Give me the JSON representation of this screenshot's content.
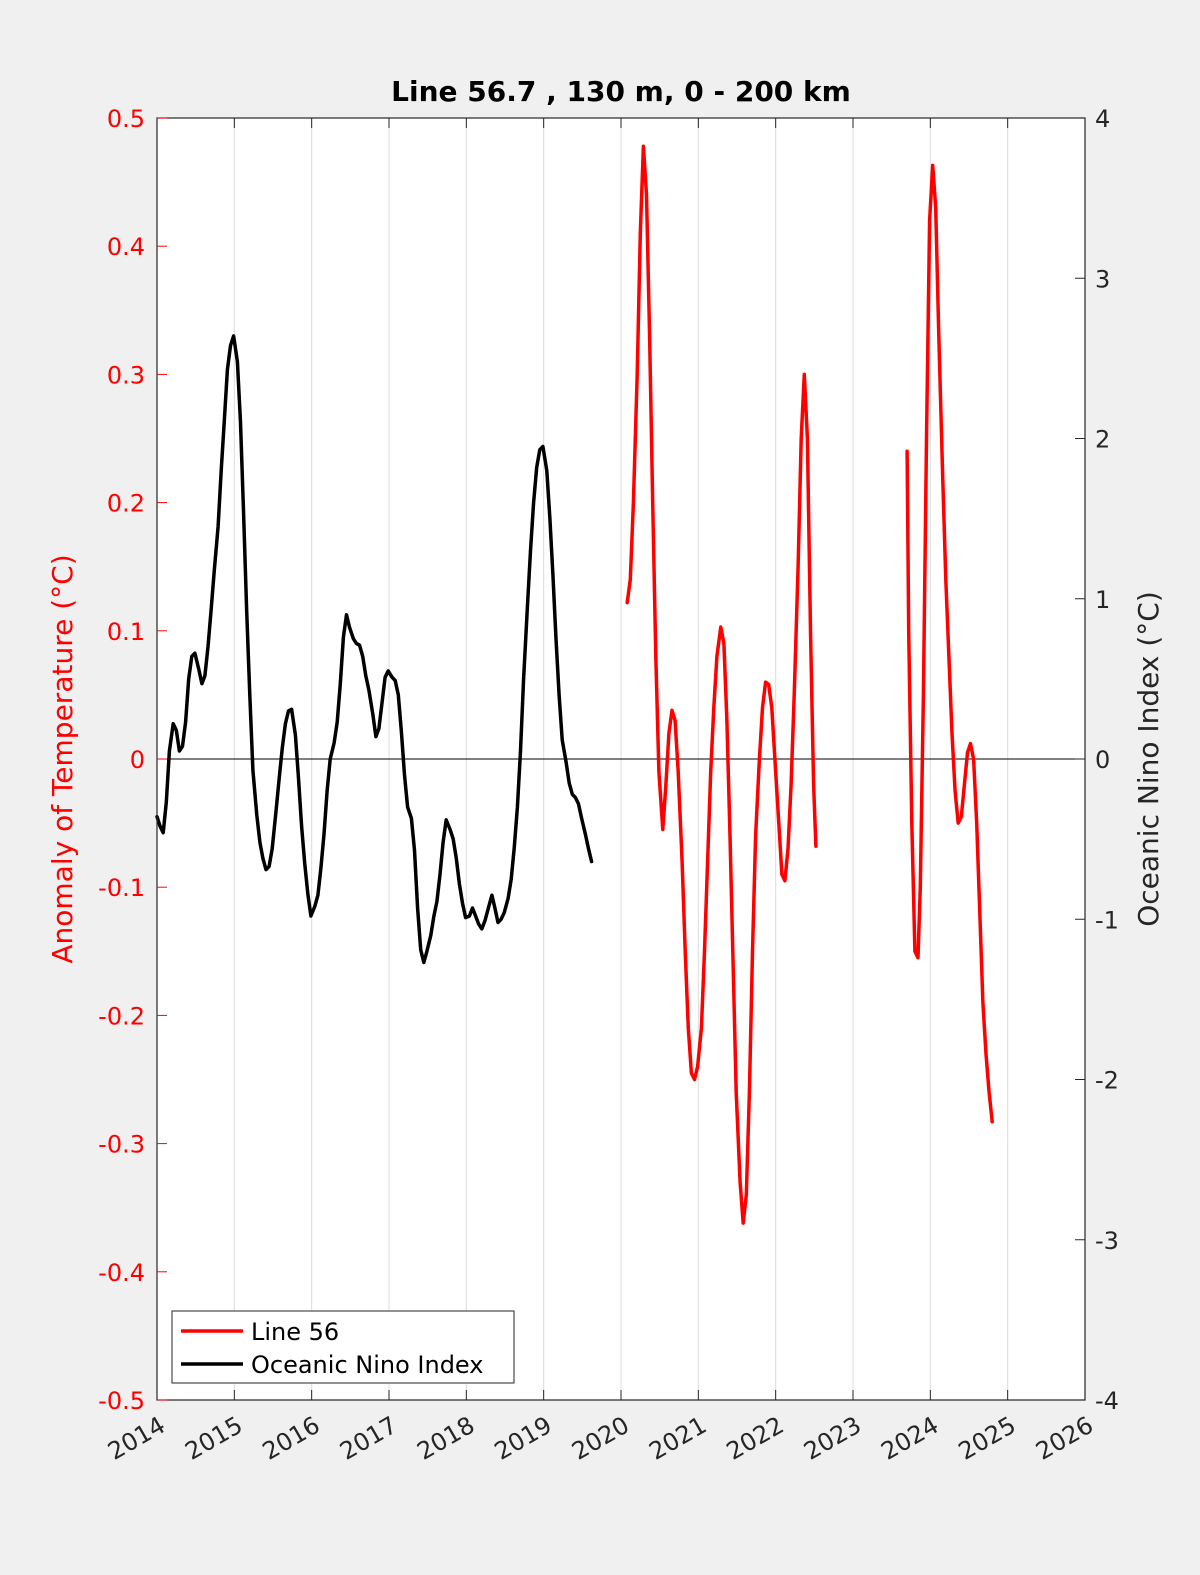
{
  "chart_data": {
    "type": "line",
    "title": "Line 56.7 , 130 m, 0 - 200 km",
    "xlabel": "",
    "ylabel_left": "Anomaly of Temperature (°C)",
    "ylabel_right": "Oceanic Nino Index (°C)",
    "xlim": [
      2014,
      2026
    ],
    "ylim_left": [
      -0.5,
      0.5
    ],
    "ylim_right": [
      -4,
      4
    ],
    "x_ticks": [
      "2014",
      "2015",
      "2016",
      "2017",
      "2018",
      "2019",
      "2020",
      "2021",
      "2022",
      "2023",
      "2024",
      "2025",
      "2026"
    ],
    "y_ticks_left": [
      "0.5",
      "0.4",
      "0.3",
      "0.2",
      "0.1",
      "0",
      "-0.1",
      "-0.2",
      "-0.3",
      "-0.4",
      "-0.5"
    ],
    "y_ticks_right": [
      "4",
      "3",
      "2",
      "1",
      "0",
      "-1",
      "-2",
      "-3",
      "-4"
    ],
    "grid": "vertical",
    "legend": "bottom-left",
    "colors": {
      "left_axis": "#ff0000",
      "line56": "#ff0000",
      "oni": "#000000",
      "background": "#f0f0f0",
      "plot_bg": "#ffffff",
      "grid": "#dcdcdc"
    },
    "series": [
      {
        "name": "Line 56",
        "axis": "left",
        "segments": [
          [
            [
              2020.08,
              0.122
            ],
            [
              2020.12,
              0.14
            ],
            [
              2020.16,
              0.2
            ],
            [
              2020.21,
              0.3
            ],
            [
              2020.25,
              0.41
            ],
            [
              2020.29,
              0.478
            ],
            [
              2020.33,
              0.44
            ],
            [
              2020.37,
              0.33
            ],
            [
              2020.41,
              0.2
            ],
            [
              2020.45,
              0.08
            ],
            [
              2020.49,
              -0.01
            ],
            [
              2020.54,
              -0.055
            ],
            [
              2020.58,
              -0.02
            ],
            [
              2020.62,
              0.02
            ],
            [
              2020.66,
              0.038
            ],
            [
              2020.7,
              0.03
            ],
            [
              2020.74,
              -0.01
            ],
            [
              2020.79,
              -0.08
            ],
            [
              2020.83,
              -0.15
            ],
            [
              2020.87,
              -0.21
            ],
            [
              2020.91,
              -0.245
            ],
            [
              2020.95,
              -0.25
            ],
            [
              2020.99,
              -0.24
            ],
            [
              2021.04,
              -0.21
            ],
            [
              2021.08,
              -0.15
            ],
            [
              2021.12,
              -0.08
            ],
            [
              2021.16,
              -0.01
            ],
            [
              2021.2,
              0.04
            ],
            [
              2021.24,
              0.08
            ],
            [
              2021.29,
              0.103
            ],
            [
              2021.33,
              0.09
            ],
            [
              2021.37,
              0.03
            ],
            [
              2021.41,
              -0.06
            ],
            [
              2021.45,
              -0.16
            ],
            [
              2021.49,
              -0.26
            ],
            [
              2021.54,
              -0.33
            ],
            [
              2021.58,
              -0.362
            ],
            [
              2021.62,
              -0.34
            ],
            [
              2021.66,
              -0.26
            ],
            [
              2021.7,
              -0.15
            ],
            [
              2021.74,
              -0.06
            ],
            [
              2021.79,
              0.0
            ],
            [
              2021.83,
              0.04
            ],
            [
              2021.87,
              0.06
            ],
            [
              2021.91,
              0.058
            ],
            [
              2021.95,
              0.04
            ],
            [
              2021.99,
              0.0
            ],
            [
              2022.04,
              -0.05
            ],
            [
              2022.08,
              -0.09
            ],
            [
              2022.12,
              -0.095
            ],
            [
              2022.16,
              -0.07
            ],
            [
              2022.2,
              -0.02
            ],
            [
              2022.24,
              0.05
            ],
            [
              2022.29,
              0.15
            ],
            [
              2022.33,
              0.25
            ],
            [
              2022.37,
              0.3
            ],
            [
              2022.41,
              0.25
            ],
            [
              2022.45,
              0.1
            ],
            [
              2022.49,
              -0.02
            ],
            [
              2022.52,
              -0.068
            ]
          ],
          [
            [
              2023.7,
              0.24
            ],
            [
              2023.72,
              0.1
            ],
            [
              2023.76,
              -0.05
            ],
            [
              2023.8,
              -0.15
            ],
            [
              2023.84,
              -0.155
            ],
            [
              2023.87,
              -0.1
            ],
            [
              2023.91,
              0.05
            ],
            [
              2023.95,
              0.25
            ],
            [
              2023.99,
              0.42
            ],
            [
              2024.03,
              0.463
            ],
            [
              2024.07,
              0.43
            ],
            [
              2024.11,
              0.33
            ],
            [
              2024.16,
              0.22
            ],
            [
              2024.2,
              0.14
            ],
            [
              2024.24,
              0.08
            ],
            [
              2024.28,
              0.02
            ],
            [
              2024.32,
              -0.025
            ],
            [
              2024.36,
              -0.05
            ],
            [
              2024.4,
              -0.045
            ],
            [
              2024.44,
              -0.02
            ],
            [
              2024.48,
              0.005
            ],
            [
              2024.52,
              0.012
            ],
            [
              2024.56,
              0.0
            ],
            [
              2024.6,
              -0.05
            ],
            [
              2024.64,
              -0.12
            ],
            [
              2024.68,
              -0.19
            ],
            [
              2024.72,
              -0.23
            ],
            [
              2024.76,
              -0.26
            ],
            [
              2024.8,
              -0.283
            ]
          ]
        ]
      },
      {
        "name": "Oceanic Nino Index",
        "axis": "right",
        "segments": [
          [
            [
              2014.0,
              -0.36
            ],
            [
              2014.04,
              -0.42
            ],
            [
              2014.08,
              -0.46
            ],
            [
              2014.12,
              -0.27
            ],
            [
              2014.16,
              0.05
            ],
            [
              2014.21,
              0.22
            ],
            [
              2014.25,
              0.18
            ],
            [
              2014.29,
              0.05
            ],
            [
              2014.33,
              0.08
            ],
            [
              2014.37,
              0.23
            ],
            [
              2014.41,
              0.5
            ],
            [
              2014.45,
              0.64
            ],
            [
              2014.49,
              0.66
            ],
            [
              2014.54,
              0.56
            ],
            [
              2014.58,
              0.47
            ],
            [
              2014.62,
              0.52
            ],
            [
              2014.66,
              0.7
            ],
            [
              2014.7,
              0.93
            ],
            [
              2014.74,
              1.17
            ],
            [
              2014.79,
              1.45
            ],
            [
              2014.83,
              1.8
            ],
            [
              2014.87,
              2.11
            ],
            [
              2014.91,
              2.43
            ],
            [
              2014.95,
              2.58
            ],
            [
              2014.99,
              2.64
            ],
            [
              2015.04,
              2.48
            ],
            [
              2015.08,
              2.1
            ],
            [
              2015.12,
              1.53
            ],
            [
              2015.16,
              0.92
            ],
            [
              2015.2,
              0.4
            ],
            [
              2015.24,
              -0.07
            ],
            [
              2015.29,
              -0.35
            ],
            [
              2015.33,
              -0.52
            ],
            [
              2015.37,
              -0.62
            ],
            [
              2015.41,
              -0.69
            ],
            [
              2015.45,
              -0.67
            ],
            [
              2015.49,
              -0.56
            ],
            [
              2015.54,
              -0.32
            ],
            [
              2015.58,
              -0.12
            ],
            [
              2015.62,
              0.07
            ],
            [
              2015.66,
              0.22
            ],
            [
              2015.7,
              0.3
            ],
            [
              2015.74,
              0.31
            ],
            [
              2015.79,
              0.15
            ],
            [
              2015.83,
              -0.12
            ],
            [
              2015.87,
              -0.42
            ],
            [
              2015.91,
              -0.65
            ],
            [
              2015.95,
              -0.84
            ],
            [
              2015.99,
              -0.98
            ],
            [
              2016.04,
              -0.92
            ],
            [
              2016.08,
              -0.85
            ],
            [
              2016.12,
              -0.68
            ],
            [
              2016.16,
              -0.47
            ],
            [
              2016.2,
              -0.2
            ],
            [
              2016.24,
              0.0
            ],
            [
              2016.29,
              0.1
            ],
            [
              2016.33,
              0.23
            ],
            [
              2016.37,
              0.47
            ],
            [
              2016.41,
              0.76
            ],
            [
              2016.45,
              0.9
            ],
            [
              2016.49,
              0.82
            ],
            [
              2016.54,
              0.75
            ],
            [
              2016.58,
              0.72
            ],
            [
              2016.62,
              0.71
            ],
            [
              2016.66,
              0.64
            ],
            [
              2016.7,
              0.52
            ],
            [
              2016.74,
              0.43
            ],
            [
              2016.79,
              0.28
            ],
            [
              2016.83,
              0.14
            ],
            [
              2016.87,
              0.19
            ],
            [
              2016.91,
              0.35
            ],
            [
              2016.95,
              0.51
            ],
            [
              2016.99,
              0.55
            ],
            [
              2017.04,
              0.51
            ],
            [
              2017.08,
              0.49
            ],
            [
              2017.12,
              0.4
            ],
            [
              2017.16,
              0.17
            ],
            [
              2017.2,
              -0.1
            ],
            [
              2017.24,
              -0.3
            ],
            [
              2017.29,
              -0.37
            ],
            [
              2017.33,
              -0.57
            ],
            [
              2017.37,
              -0.93
            ],
            [
              2017.41,
              -1.19
            ],
            [
              2017.45,
              -1.27
            ],
            [
              2017.49,
              -1.2
            ],
            [
              2017.54,
              -1.1
            ],
            [
              2017.58,
              -0.98
            ],
            [
              2017.62,
              -0.89
            ],
            [
              2017.66,
              -0.72
            ],
            [
              2017.7,
              -0.52
            ],
            [
              2017.74,
              -0.38
            ],
            [
              2017.79,
              -0.44
            ],
            [
              2017.83,
              -0.5
            ],
            [
              2017.87,
              -0.62
            ],
            [
              2017.91,
              -0.78
            ],
            [
              2017.95,
              -0.9
            ],
            [
              2017.99,
              -0.99
            ],
            [
              2018.04,
              -0.98
            ],
            [
              2018.08,
              -0.93
            ],
            [
              2018.12,
              -0.98
            ],
            [
              2018.16,
              -1.03
            ],
            [
              2018.2,
              -1.06
            ],
            [
              2018.24,
              -1.01
            ],
            [
              2018.29,
              -0.92
            ],
            [
              2018.33,
              -0.85
            ],
            [
              2018.37,
              -0.93
            ],
            [
              2018.41,
              -1.02
            ],
            [
              2018.45,
              -1.0
            ],
            [
              2018.49,
              -0.96
            ],
            [
              2018.54,
              -0.87
            ],
            [
              2018.58,
              -0.75
            ],
            [
              2018.62,
              -0.55
            ],
            [
              2018.66,
              -0.3
            ],
            [
              2018.7,
              0.05
            ],
            [
              2018.74,
              0.5
            ],
            [
              2018.79,
              0.95
            ],
            [
              2018.83,
              1.3
            ],
            [
              2018.87,
              1.6
            ],
            [
              2018.91,
              1.82
            ],
            [
              2018.95,
              1.93
            ],
            [
              2018.99,
              1.95
            ],
            [
              2019.04,
              1.8
            ],
            [
              2019.08,
              1.5
            ],
            [
              2019.12,
              1.15
            ],
            [
              2019.16,
              0.75
            ],
            [
              2019.2,
              0.4
            ],
            [
              2019.24,
              0.12
            ],
            [
              2019.29,
              -0.02
            ],
            [
              2019.33,
              -0.15
            ],
            [
              2019.37,
              -0.22
            ],
            [
              2019.41,
              -0.24
            ],
            [
              2019.45,
              -0.28
            ],
            [
              2019.49,
              -0.37
            ],
            [
              2019.54,
              -0.47
            ],
            [
              2019.58,
              -0.56
            ],
            [
              2019.62,
              -0.64
            ]
          ]
        ]
      }
    ]
  },
  "legend": [
    {
      "label": "Line 56",
      "color": "#ff0000"
    },
    {
      "label": "Oceanic Nino Index",
      "color": "#000000"
    }
  ]
}
